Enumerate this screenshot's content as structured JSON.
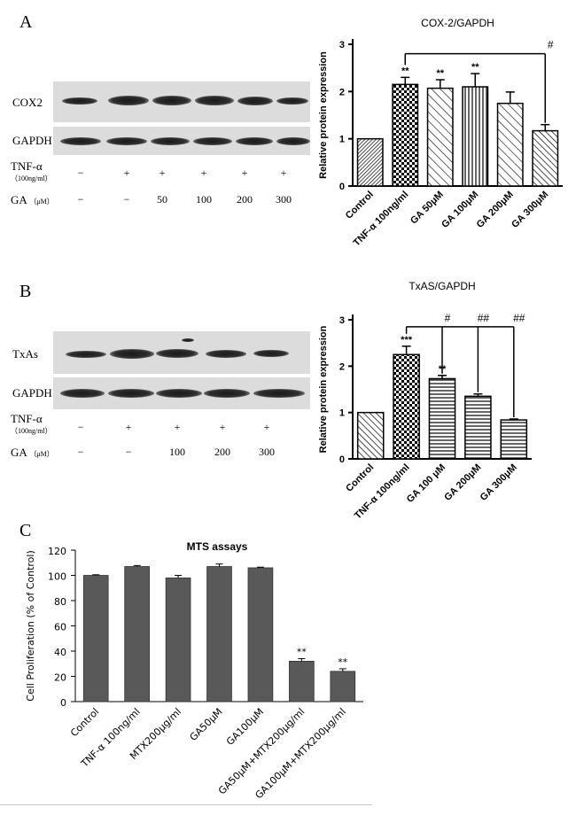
{
  "panel_a": {
    "letter": "A",
    "blot": {
      "rows": [
        "COX2",
        "GAPDH"
      ],
      "treatments": [
        {
          "label": "TNF-α",
          "sub": "（100ng/ml）",
          "values": [
            "−",
            "+",
            "+",
            "+",
            "+",
            "+"
          ]
        },
        {
          "label": "GA",
          "sub": "（μM）",
          "values": [
            "−",
            "−",
            "50",
            "100",
            "200",
            "300"
          ]
        }
      ]
    }
  },
  "panel_b": {
    "letter": "B",
    "blot": {
      "rows": [
        "TxAs",
        "GAPDH"
      ],
      "treatments": [
        {
          "label": "TNF-α",
          "sub": "（100ng/ml）",
          "values": [
            "−",
            "+",
            "+",
            "+",
            "+"
          ]
        },
        {
          "label": "GA",
          "sub": "（μM）",
          "values": [
            "−",
            "−",
            "100",
            "200",
            "300"
          ]
        }
      ]
    }
  },
  "panel_c": {
    "letter": "C"
  },
  "chart_data": [
    {
      "type": "bar",
      "title": "COX-2/GAPDH",
      "ylabel": "Relative protein expression",
      "xlabel": "",
      "ylim": [
        0,
        3
      ],
      "yticks": [
        "0",
        "1",
        "2",
        "3"
      ],
      "categories": [
        "Control",
        "TNF-α 100ng/ml",
        "GA 50μM",
        "GA 100μM",
        "GA 200μM",
        "GA 300μM"
      ],
      "values": [
        1.0,
        2.15,
        2.07,
        2.1,
        1.75,
        1.17
      ],
      "errors": [
        0.0,
        0.15,
        0.18,
        0.28,
        0.24,
        0.13
      ],
      "annotations": [
        "",
        "**",
        "**",
        "**",
        "",
        ""
      ],
      "comparison_marks": [
        "#"
      ],
      "grid": false
    },
    {
      "type": "bar",
      "title": "TxAS/GAPDH",
      "ylabel": "Relative protein expression",
      "xlabel": "",
      "ylim": [
        0,
        3
      ],
      "yticks": [
        "0",
        "1",
        "2",
        "3"
      ],
      "categories": [
        "Control",
        "TNF-α 100ng/ml",
        "GA 100 μM",
        "GA 200μM",
        "GA 300μM"
      ],
      "values": [
        1.0,
        2.25,
        1.73,
        1.35,
        0.84
      ],
      "errors": [
        0.0,
        0.18,
        0.07,
        0.05,
        0.02
      ],
      "annotations": [
        "",
        "***",
        "**",
        "",
        ""
      ],
      "comparison_marks": [
        "#",
        "##",
        "##"
      ],
      "grid": false
    },
    {
      "type": "bar",
      "title": "MTS assays",
      "ylabel": "Cell Proliferation  (% of Control)",
      "xlabel": "",
      "ylim": [
        0,
        120
      ],
      "yticks": [
        "0",
        "20",
        "40",
        "60",
        "80",
        "100",
        "120"
      ],
      "categories": [
        "Control",
        "TNF-α 100ng/ml",
        "MTX200μg/ml",
        "GA50μM",
        "GA100μM",
        "GA50μM+MTX200μg/ml",
        "GA100μM+MTX200μg/ml"
      ],
      "values": [
        100,
        107,
        98,
        107,
        106,
        32,
        24
      ],
      "errors": [
        0.5,
        0.8,
        2,
        2,
        0.5,
        2,
        2
      ],
      "annotations": [
        "",
        "",
        "",
        "",
        "",
        "**",
        "**"
      ],
      "color": "#595959",
      "grid": false
    }
  ]
}
